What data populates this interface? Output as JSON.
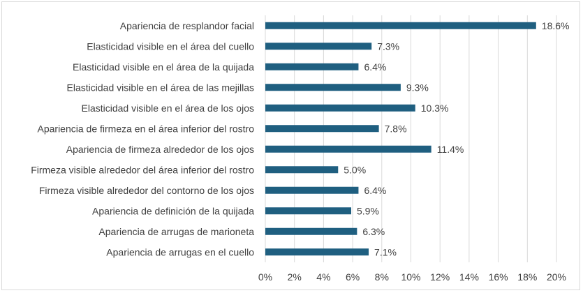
{
  "chart_data": {
    "type": "bar",
    "orientation": "horizontal",
    "categories": [
      "Apariencia de resplandor facial",
      "Elasticidad visible en el área del cuello",
      "Elasticidad visible en el área de la quijada",
      "Elasticidad visible en el área de las mejillas",
      "Elasticidad visible en el área de los ojos",
      "Apariencia de firmeza en el área inferior del rostro",
      "Apariencia de firmeza alrededor de los ojos",
      "Firmeza visible alrededor del área inferior del rostro",
      "Firmeza visible alrededor del contorno de los ojos",
      "Apariencia de definición de la quijada",
      "Apariencia de arrugas de marioneta",
      "Apariencia de arrugas en el cuello"
    ],
    "values": [
      18.6,
      7.3,
      6.4,
      9.3,
      10.3,
      7.8,
      11.4,
      5.0,
      6.4,
      5.9,
      6.3,
      7.1
    ],
    "data_labels": [
      "18.6%",
      "7.3%",
      "6.4%",
      "9.3%",
      "10.3%",
      "7.8%",
      "11.4%",
      "5.0%",
      "6.4%",
      "5.9%",
      "6.3%",
      "7.1%"
    ],
    "x_ticks": [
      "0%",
      "2%",
      "4%",
      "6%",
      "8%",
      "10%",
      "12%",
      "14%",
      "16%",
      "18%",
      "20%"
    ],
    "xlim": [
      0,
      20
    ],
    "grid": true,
    "title": "",
    "xlabel": "",
    "ylabel": "",
    "bar_color": "#1f5f80",
    "grid_color": "#d9d9d9",
    "text_color": "#404040"
  }
}
